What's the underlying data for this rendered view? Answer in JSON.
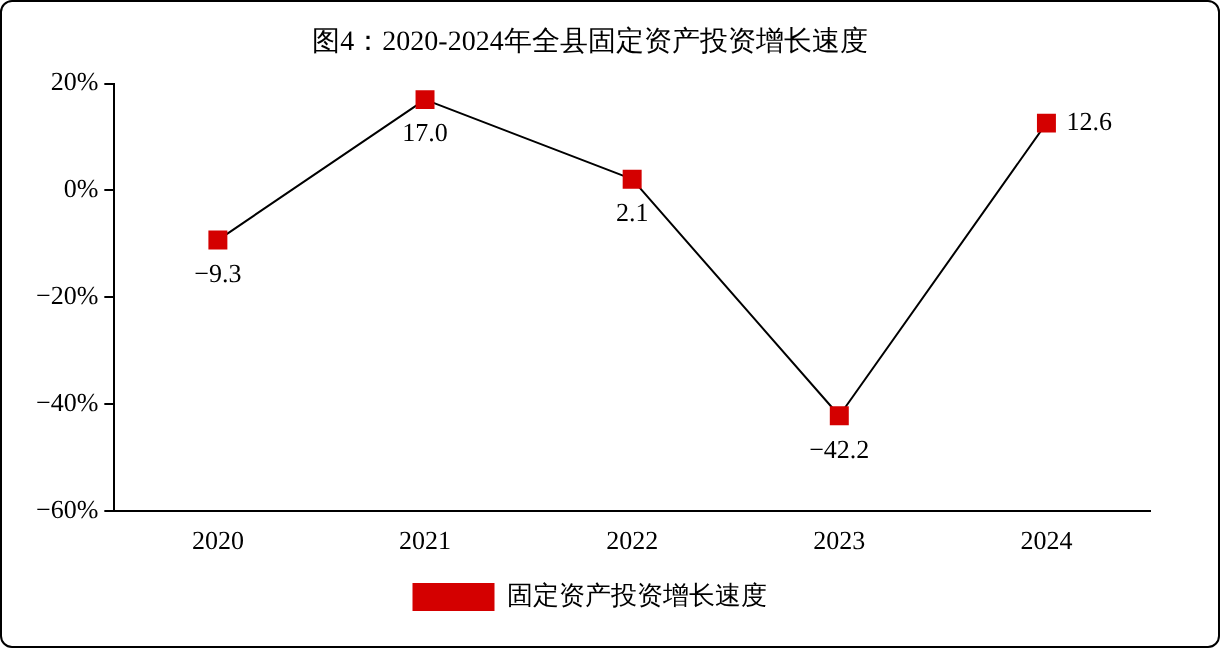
{
  "chart_data": {
    "type": "line",
    "title": "图4：2020-2024年全县固定资产投资增长速度",
    "categories": [
      "2020",
      "2021",
      "2022",
      "2023",
      "2024"
    ],
    "series": [
      {
        "name": "固定资产投资增长速度",
        "color": "#d40000",
        "values": [
          -9.3,
          17.0,
          2.1,
          -42.2,
          12.6
        ],
        "value_labels": [
          "−9.3",
          "17.0",
          "2.1",
          "−42.2",
          "12.6"
        ]
      }
    ],
    "ylim": [
      -60,
      20
    ],
    "yticks": [
      {
        "value": -60,
        "label": "−60%"
      },
      {
        "value": -40,
        "label": "−40%"
      },
      {
        "value": -20,
        "label": "−20%"
      },
      {
        "value": 0,
        "label": "0%"
      },
      {
        "value": 20,
        "label": "20%"
      }
    ],
    "grid": false,
    "legend": "bottom",
    "marker": "square",
    "line_style": "solid"
  }
}
